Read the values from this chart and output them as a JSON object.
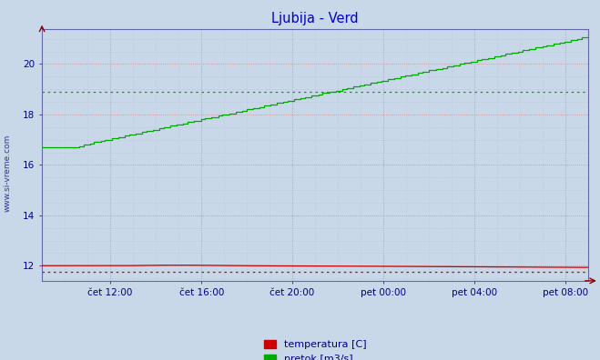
{
  "title": "Ljubija - Verd",
  "title_color": "#0000cc",
  "bg_color": "#c8d8e8",
  "plot_bg_color": "#c8d8e8",
  "tick_label_color": "#000080",
  "axis_line_color": "#6666aa",
  "grid_color_red": "#cc8888",
  "grid_color_light": "#aaaacc",
  "x_tick_labels": [
    "čet 12:00",
    "čet 16:00",
    "čet 20:00",
    "pet 00:00",
    "pet 04:00",
    "pet 08:00"
  ],
  "x_tick_positions": [
    0.125,
    0.292,
    0.458,
    0.625,
    0.792,
    0.958
  ],
  "y_ticks": [
    12,
    14,
    16,
    18,
    20
  ],
  "ylim": [
    11.4,
    21.4
  ],
  "xlim": [
    0,
    1
  ],
  "temp_avg": 11.75,
  "flow_avg": 18.9,
  "legend_labels": [
    "temperatura [C]",
    "pretok [m3/s]"
  ],
  "legend_colors": [
    "#cc0000",
    "#00aa00"
  ],
  "side_label": "www.si-vreme.com"
}
